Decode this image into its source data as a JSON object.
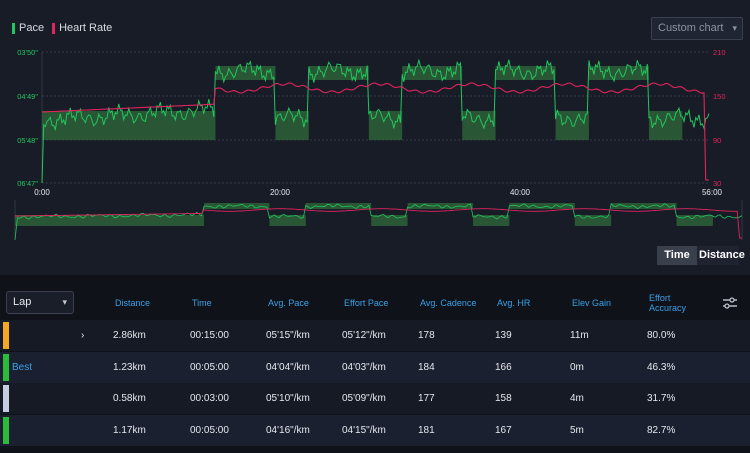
{
  "legend": [
    {
      "label": "Pace",
      "color": "#22c55e"
    },
    {
      "label": "Heart Rate",
      "color": "#e0245e"
    }
  ],
  "custom_chart": {
    "label": "Custom chart"
  },
  "toggle": {
    "time": "Time",
    "distance": "Distance"
  },
  "chart_data": {
    "type": "line",
    "x_ticks": [
      "0:00",
      "20:00",
      "40:00",
      "56:00"
    ],
    "left_ticks": [
      "03'50\"",
      "04'49\"",
      "05'48\"",
      "06'47\""
    ],
    "right_ticks": [
      "210",
      "150",
      "90",
      "30"
    ],
    "series": [
      {
        "name": "Pace",
        "axis": "left",
        "color": "#22c55e"
      },
      {
        "name": "Heart Rate",
        "axis": "right",
        "color": "#e0245e"
      }
    ],
    "target_blocks": [
      {
        "start": 0.0,
        "end": 0.26,
        "level": "05'48\""
      },
      {
        "start": 0.26,
        "end": 0.35,
        "level": "04'49\""
      },
      {
        "start": 0.35,
        "end": 0.4,
        "level": "05'48\""
      },
      {
        "start": 0.4,
        "end": 0.49,
        "level": "04'49\""
      },
      {
        "start": 0.49,
        "end": 0.54,
        "level": "05'48\""
      },
      {
        "start": 0.54,
        "end": 0.63,
        "level": "04'49\""
      },
      {
        "start": 0.63,
        "end": 0.68,
        "level": "05'48\""
      },
      {
        "start": 0.68,
        "end": 0.77,
        "level": "04'49\""
      },
      {
        "start": 0.77,
        "end": 0.82,
        "level": "05'48\""
      },
      {
        "start": 0.82,
        "end": 0.91,
        "level": "04'49\""
      },
      {
        "start": 0.91,
        "end": 0.96,
        "level": "05'48\""
      }
    ]
  },
  "table": {
    "select_label": "Lap",
    "headers": [
      "Distance",
      "Time",
      "Avg. Pace",
      "Effort Pace",
      "Avg. Cadence",
      "Avg. HR",
      "Elev Gain",
      "Effort Accuracy"
    ],
    "rows": [
      {
        "color": "#f5a623",
        "tag": "",
        "mark": "›",
        "cells": [
          "2.86km",
          "00:15:00",
          "05'15\"/km",
          "05'12\"/km",
          "178",
          "139",
          "11m",
          "80.0%"
        ]
      },
      {
        "color": "#2bbd3a",
        "tag": "Best",
        "mark": "",
        "cells": [
          "1.23km",
          "00:05:00",
          "04'04\"/km",
          "04'03\"/km",
          "184",
          "166",
          "0m",
          "46.3%"
        ]
      },
      {
        "color": "#c7cde0",
        "tag": "",
        "mark": "",
        "cells": [
          "0.58km",
          "00:03:00",
          "05'10\"/km",
          "05'09\"/km",
          "177",
          "158",
          "4m",
          "31.7%"
        ]
      },
      {
        "color": "#2bbd3a",
        "tag": "",
        "mark": "",
        "cells": [
          "1.17km",
          "00:05:00",
          "04'16\"/km",
          "04'15\"/km",
          "181",
          "167",
          "5m",
          "82.7%"
        ]
      }
    ]
  }
}
